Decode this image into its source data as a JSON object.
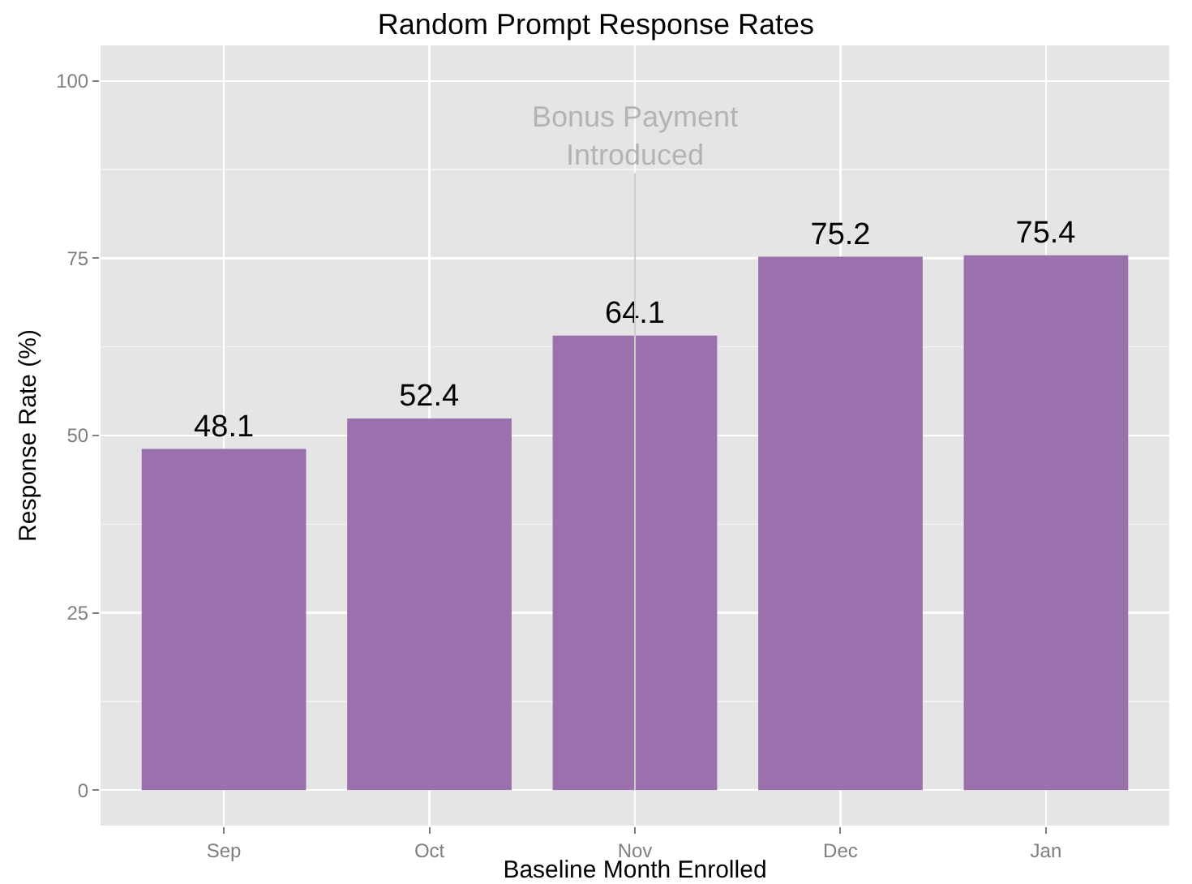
{
  "chart_data": {
    "type": "bar",
    "title": "Random Prompt Response Rates",
    "xlabel": "Baseline Month Enrolled",
    "ylabel": "Response Rate (%)",
    "categories": [
      "Sep",
      "Oct",
      "Nov",
      "Dec",
      "Jan"
    ],
    "values": [
      48.1,
      52.4,
      64.1,
      75.2,
      75.4
    ],
    "color": "#9a71ad",
    "data_labels": true,
    "ylim": [
      -5,
      105
    ],
    "yticks": [
      0,
      25,
      50,
      75,
      100
    ],
    "grid": true,
    "ref_lines": [
      {
        "axis": "x",
        "value": "Nov",
        "label": "Bonus Payment Introduced",
        "color": "#cccccc"
      }
    ]
  }
}
